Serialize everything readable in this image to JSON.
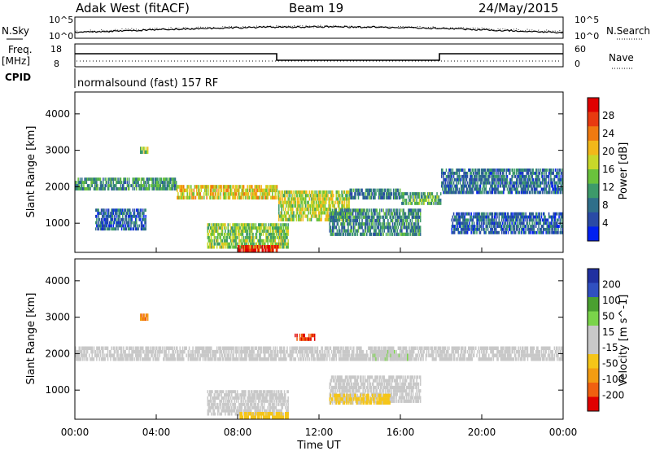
{
  "header": {
    "station": "Adak West (fitACF)",
    "beam": "Beam 19",
    "date": "24/May/2015"
  },
  "top_panels": {
    "nsky_label": "N.Sky",
    "nsearch_label": "N.Search",
    "noise_ticks_left": [
      "10^5",
      "10^0"
    ],
    "noise_ticks_right": [
      "10^5",
      "10^0"
    ],
    "freq_label_1": "Freq.",
    "freq_label_2": "[MHz]",
    "freq_ticks": [
      "18",
      "8"
    ],
    "nave_label": "Nave",
    "nave_ticks": [
      "60",
      "0"
    ],
    "cpid_label": "CPID",
    "cpid_text": "normalsound (fast) 157 RF"
  },
  "axis": {
    "xlabel": "Time UT",
    "xticks": [
      "00:00",
      "04:00",
      "08:00",
      "12:00",
      "16:00",
      "20:00",
      "00:00"
    ],
    "ylabel": "Slant Range [km]",
    "yticks": [
      "4000",
      "3000",
      "2000",
      "1000"
    ]
  },
  "colors": {
    "power": [
      "#0020f0",
      "#2a4aa6",
      "#2f6f8a",
      "#3d9a6a",
      "#6ac23c",
      "#c8d82a",
      "#f2b81a",
      "#f07a10",
      "#e83a10",
      "#e00000"
    ],
    "velocity": [
      "#e00000",
      "#f06010",
      "#f39c12",
      "#f5c518",
      "#c8c8c8",
      "#c8c8c8",
      "#7ad44a",
      "#4aa030",
      "#3050c0",
      "#2030a0"
    ]
  },
  "chart_data": [
    {
      "type": "heatmap",
      "name": "power",
      "xlabel": "Time UT",
      "ylabel": "Slant Range [km]",
      "xlim": [
        0,
        24
      ],
      "ylim": [
        200,
        4600
      ],
      "colorbar": {
        "label": "Power [dB]",
        "ticks": [
          "28",
          "24",
          "20",
          "16",
          "12",
          "8",
          "4"
        ],
        "range": [
          0,
          30
        ]
      },
      "bands": [
        {
          "t0": 0.0,
          "t1": 5.0,
          "r0": 1900,
          "r1": 2250,
          "value": 10
        },
        {
          "t0": 5.0,
          "t1": 10.0,
          "r0": 1650,
          "r1": 2050,
          "value": 18
        },
        {
          "t0": 10.0,
          "t1": 13.5,
          "r0": 1050,
          "r1": 1900,
          "value": 16
        },
        {
          "t0": 13.5,
          "t1": 16.0,
          "r0": 1650,
          "r1": 1950,
          "value": 8
        },
        {
          "t0": 16.0,
          "t1": 18.0,
          "r0": 1500,
          "r1": 1850,
          "value": 12
        },
        {
          "t0": 18.0,
          "t1": 24.0,
          "r0": 1800,
          "r1": 2500,
          "value": 7
        },
        {
          "t0": 1.0,
          "t1": 3.5,
          "r0": 800,
          "r1": 1400,
          "value": 6
        },
        {
          "t0": 6.5,
          "t1": 10.5,
          "r0": 300,
          "r1": 1000,
          "value": 14
        },
        {
          "t0": 12.5,
          "t1": 17.0,
          "r0": 650,
          "r1": 1400,
          "value": 9
        },
        {
          "t0": 18.5,
          "t1": 24.0,
          "r0": 700,
          "r1": 1300,
          "value": 6
        },
        {
          "t0": 8.0,
          "t1": 10.0,
          "r0": 200,
          "r1": 400,
          "value": 28
        },
        {
          "t0": 3.2,
          "t1": 3.6,
          "r0": 2900,
          "r1": 3100,
          "value": 14
        }
      ]
    },
    {
      "type": "heatmap",
      "name": "velocity",
      "xlabel": "Time UT",
      "ylabel": "Slant Range [km]",
      "xlim": [
        0,
        24
      ],
      "ylim": [
        200,
        4600
      ],
      "colorbar": {
        "label": "Velocity [m s^-1]",
        "ticks": [
          "200",
          "100",
          "50",
          "15",
          "-15",
          "-50",
          "-100",
          "-200"
        ],
        "range": [
          -250,
          250
        ]
      },
      "bands": [
        {
          "t0": 0.0,
          "t1": 24.0,
          "r0": 1800,
          "r1": 2200,
          "value": 0
        },
        {
          "t0": 6.5,
          "t1": 10.5,
          "r0": 300,
          "r1": 1000,
          "value": 0
        },
        {
          "t0": 12.5,
          "t1": 17.0,
          "r0": 650,
          "r1": 1400,
          "value": 0
        },
        {
          "t0": 8.0,
          "t1": 10.5,
          "r0": 200,
          "r1": 400,
          "value": -80
        },
        {
          "t0": 12.5,
          "t1": 15.5,
          "r0": 600,
          "r1": 900,
          "value": -60
        },
        {
          "t0": 10.8,
          "t1": 11.8,
          "r0": 2350,
          "r1": 2550,
          "value": -200
        },
        {
          "t0": 3.2,
          "t1": 3.6,
          "r0": 2900,
          "r1": 3100,
          "value": -150
        },
        {
          "t0": 14.5,
          "t1": 16.5,
          "r0": 1800,
          "r1": 2100,
          "value": 40
        }
      ]
    }
  ]
}
